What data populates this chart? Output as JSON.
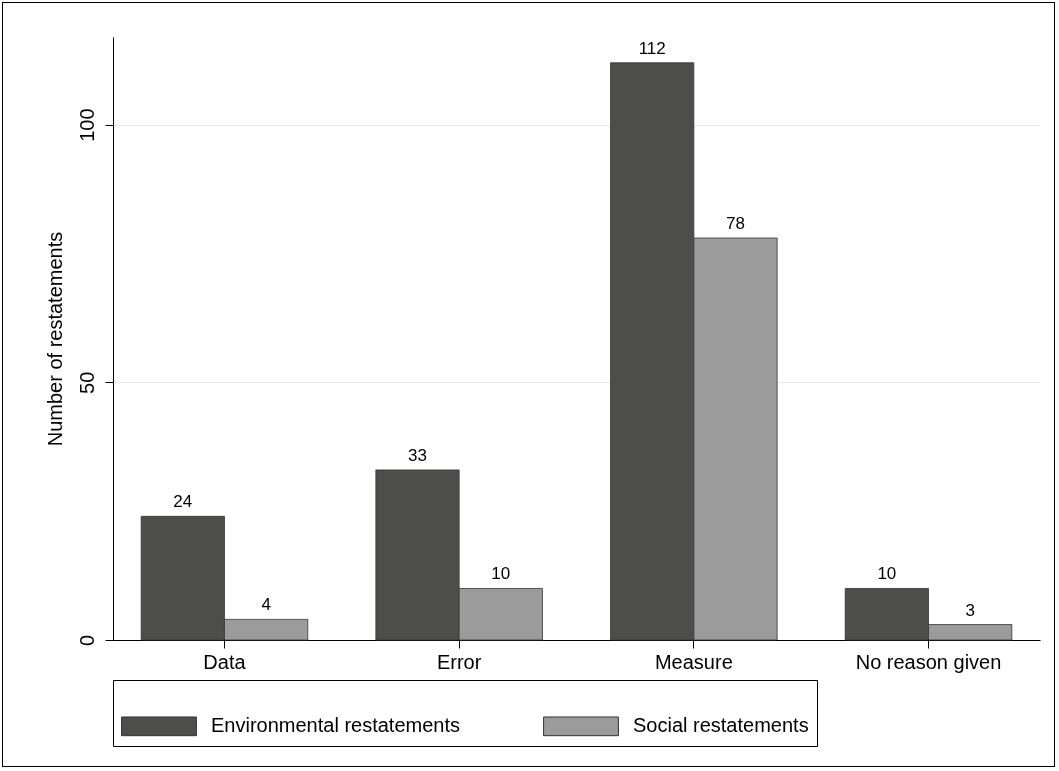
{
  "chart_data": {
    "type": "bar",
    "ylabel": "Number of restatements",
    "categories": [
      "Data",
      "Error",
      "Measure",
      "No reason given"
    ],
    "series": [
      {
        "name": "Environmental restatements",
        "color": "#4d4d4b",
        "values": [
          24,
          33,
          112,
          10
        ]
      },
      {
        "name": "Social restatements",
        "color": "#9b9b9b",
        "values": [
          4,
          10,
          78,
          3
        ]
      }
    ],
    "ylim": [
      0,
      117
    ],
    "yticks": [
      0,
      50,
      100
    ],
    "grid": "y",
    "legend": "bottom",
    "data_labels": true
  }
}
